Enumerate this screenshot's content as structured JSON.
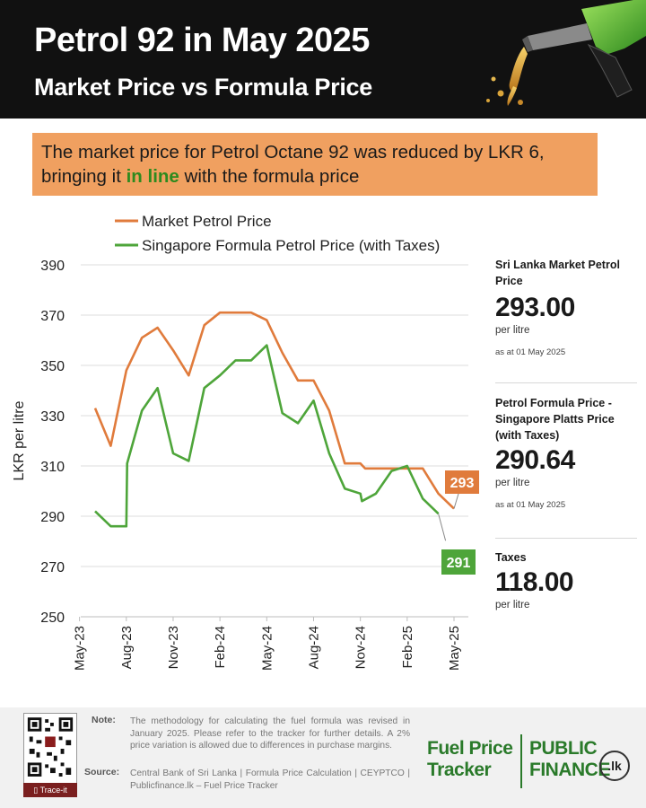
{
  "header": {
    "title": "Petrol 92 in May 2025",
    "subtitle": "Market Price vs Formula Price"
  },
  "callout": {
    "text_before": "The market price for Petrol Octane 92 was reduced by LKR 6, bringing it ",
    "highlight": "in line",
    "text_after": " with the formula price"
  },
  "colors": {
    "market": "#e07b3c",
    "formula": "#4ea53a",
    "header_bg": "#111111",
    "callout_bg": "#f0a060",
    "highlight": "#2e8a1e"
  },
  "chart_data": {
    "type": "line",
    "ylabel": "LKR per litre",
    "ylim": [
      250,
      390
    ],
    "yticks": [
      250,
      270,
      290,
      310,
      330,
      350,
      370,
      390
    ],
    "xticks": [
      "May-23",
      "Aug-23",
      "Nov-23",
      "Feb-24",
      "May-24",
      "Aug-24",
      "Nov-24",
      "Feb-25",
      "May-25"
    ],
    "x": [
      "Jun-23",
      "Jul-23",
      "Aug-23",
      "Sep-23",
      "Oct-23",
      "Nov-23",
      "Dec-23",
      "Jan-24",
      "Feb-24",
      "Mar-24",
      "Apr-24",
      "May-24",
      "Jun-24",
      "Jul-24",
      "Aug-24",
      "Sep-24",
      "Oct-24",
      "Nov-24",
      "Dec-24",
      "Jan-25",
      "Feb-25",
      "Mar-25",
      "Apr-25",
      "May-25"
    ],
    "grid": "horizontal",
    "legend": "top",
    "series": [
      {
        "name": "Market Petrol Price",
        "color": "#e07b3c",
        "points": [
          [
            0,
            333
          ],
          [
            1,
            318
          ],
          [
            2,
            348
          ],
          [
            3,
            361
          ],
          [
            4,
            365
          ],
          [
            5,
            356
          ],
          [
            6,
            346
          ],
          [
            7,
            366
          ],
          [
            8,
            371
          ],
          [
            9,
            371
          ],
          [
            10,
            371
          ],
          [
            11,
            368
          ],
          [
            12,
            355
          ],
          [
            13,
            344
          ],
          [
            14,
            344
          ],
          [
            15,
            332
          ],
          [
            16,
            311
          ],
          [
            17,
            311
          ],
          [
            17.3,
            309
          ],
          [
            18,
            309
          ],
          [
            19,
            309
          ],
          [
            20,
            309
          ],
          [
            20.8,
            309
          ],
          [
            21,
            309
          ],
          [
            22,
            299
          ],
          [
            23,
            293
          ]
        ],
        "end_label": "293"
      },
      {
        "name": "Singapore Formula Petrol Price (with Taxes)",
        "color": "#4ea53a",
        "points": [
          [
            0,
            292
          ],
          [
            1,
            286
          ],
          [
            2,
            286
          ],
          [
            2.05,
            311
          ],
          [
            3,
            332
          ],
          [
            4,
            341
          ],
          [
            5,
            315
          ],
          [
            6,
            312
          ],
          [
            7,
            341
          ],
          [
            8,
            346
          ],
          [
            9,
            352
          ],
          [
            10,
            352
          ],
          [
            11,
            358
          ],
          [
            12,
            331
          ],
          [
            13,
            327
          ],
          [
            14,
            336
          ],
          [
            15,
            315
          ],
          [
            16,
            301
          ],
          [
            17,
            299
          ],
          [
            17.1,
            296
          ],
          [
            18,
            299
          ],
          [
            19,
            308
          ],
          [
            20,
            310
          ],
          [
            21,
            297
          ],
          [
            22,
            291
          ]
        ],
        "end_label": "291"
      }
    ]
  },
  "side_panel": {
    "market": {
      "label": "Sri Lanka Market Petrol Price",
      "value": "293.00",
      "unit": "per litre",
      "as_at": "as at 01 May 2025"
    },
    "formula": {
      "label": "Petrol Formula Price - Singapore Platts Price (with Taxes)",
      "value": "290.64",
      "unit": "per litre",
      "as_at": "as at 01 May 2025"
    },
    "taxes": {
      "label": "Taxes",
      "value": "118.00",
      "unit": "per litre"
    }
  },
  "footer": {
    "note_key": "Note:",
    "note": "The methodology for calculating the fuel formula was revised in January 2025. Please refer to the tracker for further details. A 2% price variation is allowed due to differences in purchase margins.",
    "source_key": "Source:",
    "source": "Central Bank of Sri Lanka | Formula Price Calculation | CEYPTCO | Publicfinance.lk – Fuel Price Tracker",
    "qr_label": "Trace-it",
    "brand_tracker_1": "Fuel Price",
    "brand_tracker_2": "Tracker",
    "brand_pf_1": "PUBLIC",
    "brand_pf_2": "FINANCE",
    "brand_lk": ".lk"
  }
}
